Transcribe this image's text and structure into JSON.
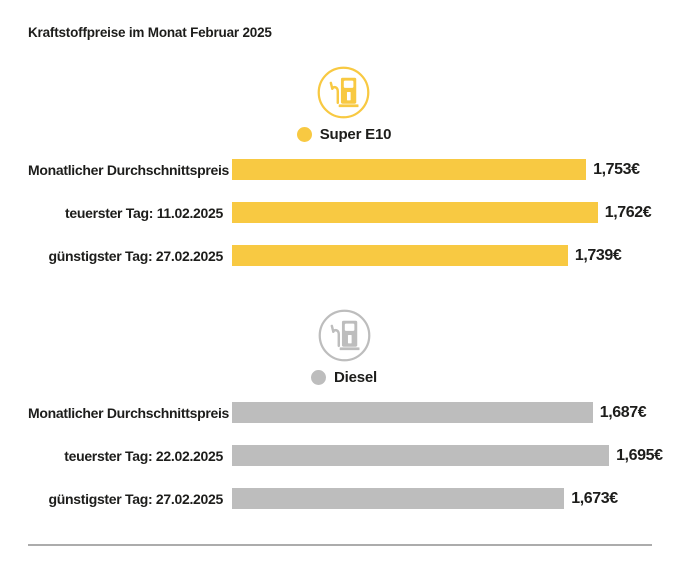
{
  "page": {
    "title": "Kraftstoffpreise im Monat Februar 2025"
  },
  "colors": {
    "super_e10_yellow": "#F8C942",
    "diesel_gray": "#BDBDBD",
    "text_black": "#1D1D1B",
    "divider_gray": "#ACACAC",
    "background": "#FFFFFF"
  },
  "chart_data": [
    {
      "type": "bar",
      "orientation": "horizontal",
      "title": "Super E10",
      "icon": "fuel-pump-icon",
      "color": "#F8C942",
      "xlim": [
        1.48,
        1.81
      ],
      "grid": false,
      "legend_position": "top-center",
      "categories": [
        "Monatlicher Durchschnittspreis",
        "teuerster Tag: 11.02.2025",
        "günstigster Tag: 27.02.2025"
      ],
      "values": [
        1.753,
        1.762,
        1.739
      ],
      "value_labels": [
        "1,753€",
        "1,762€",
        "1,739€"
      ]
    },
    {
      "type": "bar",
      "orientation": "horizontal",
      "title": "Diesel",
      "icon": "fuel-pump-icon",
      "color": "#BDBDBD",
      "xlim": [
        1.51,
        1.72
      ],
      "grid": false,
      "legend_position": "top-center",
      "categories": [
        "Monatlicher Durchschnittspreis",
        "teuerster Tag: 22.02.2025",
        "günstigster Tag: 27.02.2025"
      ],
      "values": [
        1.687,
        1.695,
        1.673
      ],
      "value_labels": [
        "1,687€",
        "1,695€",
        "1,673€"
      ]
    }
  ]
}
